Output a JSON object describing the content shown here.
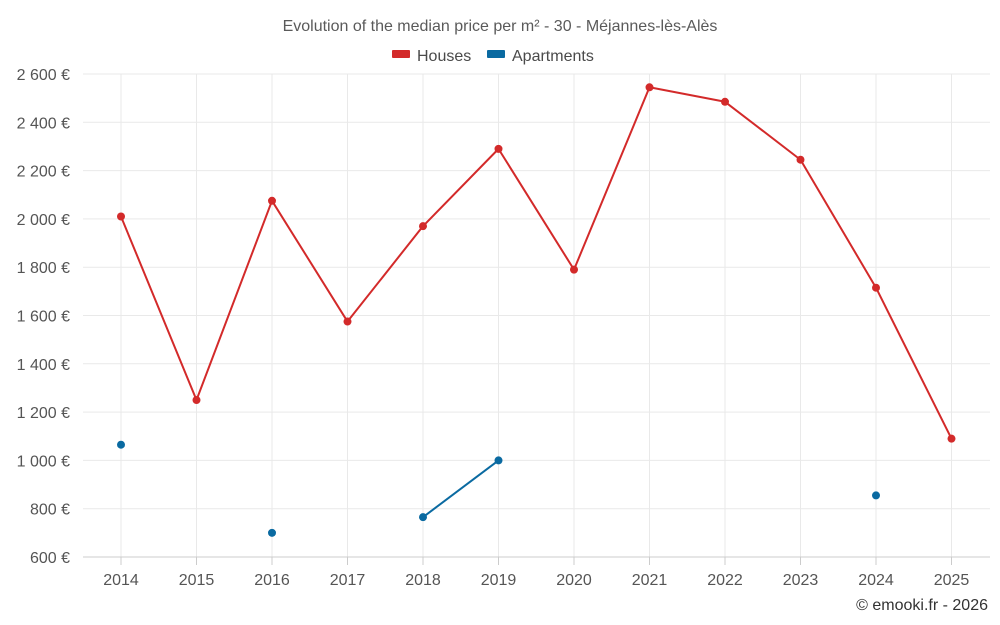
{
  "chart_data": {
    "type": "line",
    "title": "Evolution of the median price per m² - 30 - Méjannes-lès-Alès",
    "categories": [
      "2014",
      "2015",
      "2016",
      "2017",
      "2018",
      "2019",
      "2020",
      "2021",
      "2022",
      "2023",
      "2024",
      "2025"
    ],
    "ylim": [
      600,
      2600
    ],
    "yticks": [
      600,
      800,
      1000,
      1200,
      1400,
      1600,
      1800,
      2000,
      2200,
      2400,
      2600
    ],
    "ytick_labels": [
      "600 €",
      "800 €",
      "1 000 €",
      "1 200 €",
      "1 400 €",
      "1 600 €",
      "1 800 €",
      "2 000 €",
      "2 200 €",
      "2 400 €",
      "2 600 €"
    ],
    "series": [
      {
        "name": "Houses",
        "color": "#d32a2a",
        "values": [
          2010,
          1250,
          2075,
          1575,
          1970,
          2290,
          1790,
          2545,
          2485,
          2245,
          1715,
          1090
        ]
      },
      {
        "name": "Apartments",
        "color": "#0a6aa1",
        "values": [
          1065,
          null,
          700,
          null,
          765,
          1000,
          null,
          null,
          null,
          null,
          855,
          null
        ]
      }
    ],
    "legend_position": "top-center",
    "grid": true,
    "credit": "© emooki.fr - 2026"
  }
}
